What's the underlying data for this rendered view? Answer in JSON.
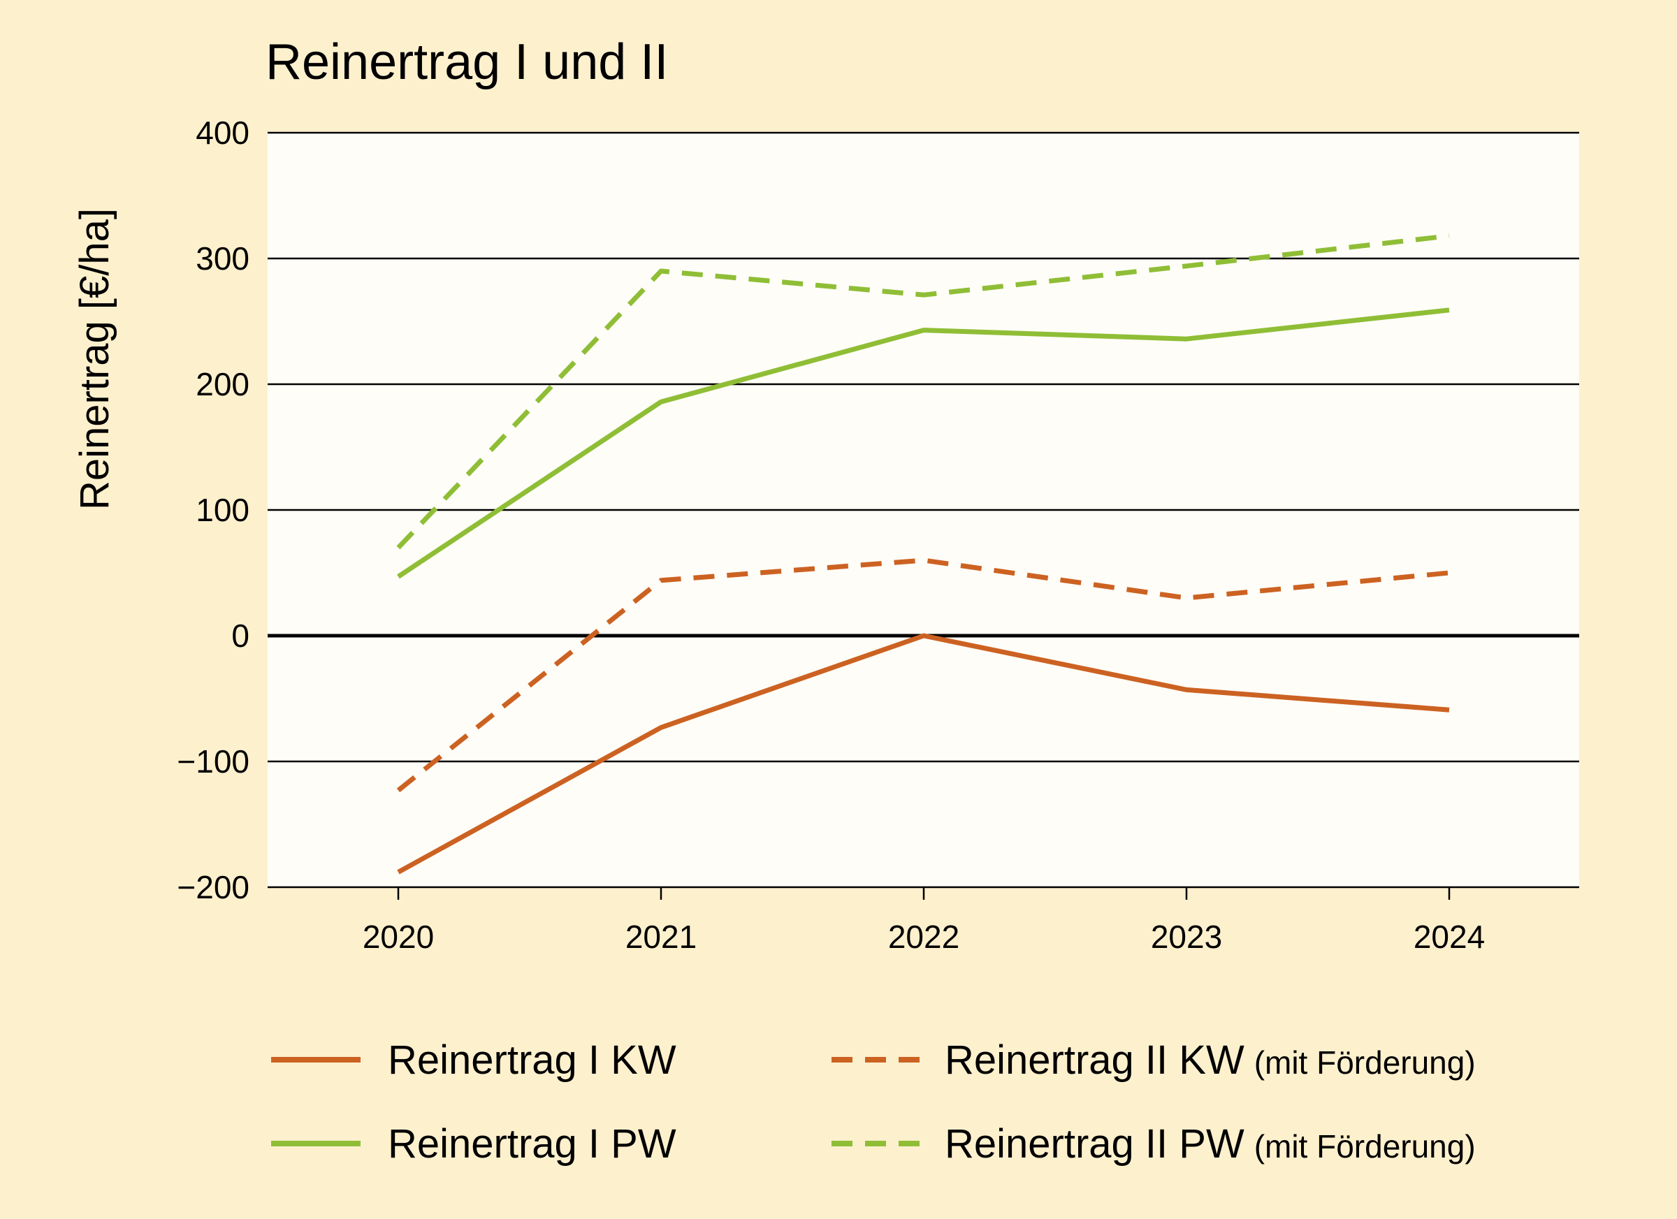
{
  "chart_data": {
    "type": "line",
    "title": "Reinertrag I und II",
    "xlabel": "",
    "ylabel": "Reinertrag [€/ha]",
    "x": [
      "2020",
      "2021",
      "2022",
      "2023",
      "2024"
    ],
    "ylim": [
      -200,
      400
    ],
    "yticks": [
      400,
      300,
      200,
      100,
      0,
      -100,
      -200
    ],
    "ytick_labels": [
      "400",
      "300",
      "200",
      "100",
      "0",
      "−100",
      "−200"
    ],
    "grid": true,
    "legend_position": "bottom",
    "series": [
      {
        "name": "Reinertrag I KW",
        "note": "",
        "color": "#cc6222",
        "dashed": false,
        "values": [
          -188,
          -73,
          0,
          -43,
          -59
        ]
      },
      {
        "name": "Reinertrag II KW",
        "note": "(mit Förderung)",
        "color": "#cc6222",
        "dashed": true,
        "values": [
          -123,
          44,
          60,
          30,
          50
        ]
      },
      {
        "name": "Reinertrag I PW",
        "note": "",
        "color": "#8fbe36",
        "dashed": false,
        "values": [
          47,
          186,
          243,
          236,
          259
        ]
      },
      {
        "name": "Reinertrag II PW",
        "note": "(mit Förderung)",
        "color": "#8fbe36",
        "dashed": true,
        "values": [
          70,
          290,
          271,
          294,
          318
        ]
      }
    ]
  }
}
